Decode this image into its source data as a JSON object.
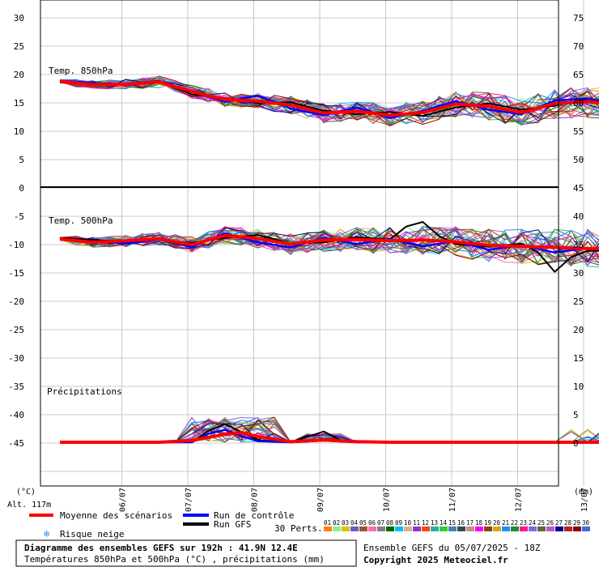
{
  "chart_data": {
    "type": "line",
    "panels": [
      {
        "label": "Temp. 850hPa",
        "y_left_ticks": [
          "30",
          "25",
          "20",
          "15",
          "10",
          "5"
        ],
        "y_right_ticks": [
          "75",
          "70",
          "65",
          "60",
          "55",
          "50"
        ],
        "ylim": [
          0,
          30
        ],
        "unit": "°C"
      },
      {
        "label": "Temp. 500hPa",
        "y_left_ticks": [
          "0",
          "-5",
          "-10",
          "-15",
          "-20",
          "-25",
          "-30",
          "-35",
          "-40",
          "-45"
        ],
        "y_right_ticks": [
          "45",
          "40",
          "35",
          "30",
          "25",
          "20",
          "15",
          "10",
          "5",
          "0"
        ],
        "ylim": [
          -50,
          0
        ],
        "unit": "°C"
      },
      {
        "label": "Précipitations",
        "unit": "mm"
      }
    ],
    "x_ticks": [
      "06/07",
      "07/07",
      "08/07",
      "09/07",
      "10/07",
      "11/07",
      "12/07",
      "13/07"
    ],
    "left_unit": "(°C)",
    "right_unit": "(mm)",
    "altitude": "Alt. 117m",
    "series": [
      {
        "name": "Moyenne des scénarios",
        "color": "#ff0000",
        "t850": [
          [
            0,
            18.8
          ],
          [
            0.5,
            18.2
          ],
          [
            1,
            18.3
          ],
          [
            1.5,
            18.7
          ],
          [
            2,
            17.0
          ],
          [
            2.5,
            15.6
          ],
          [
            3,
            15.3
          ],
          [
            3.5,
            14.6
          ],
          [
            4,
            13.2
          ],
          [
            4.5,
            13.5
          ],
          [
            5,
            12.8
          ],
          [
            5.5,
            13.3
          ],
          [
            6,
            14.8
          ],
          [
            6.5,
            14.4
          ],
          [
            7,
            13.3
          ],
          [
            7.5,
            14.9
          ],
          [
            8,
            15.2
          ],
          [
            8.5,
            14.6
          ],
          [
            9,
            15.8
          ],
          [
            9.5,
            15.9
          ],
          [
            10,
            15.8
          ],
          [
            10.5,
            16.8
          ],
          [
            11,
            17.0
          ],
          [
            11.5,
            16.9
          ],
          [
            12,
            18.2
          ]
        ],
        "t500": [
          [
            0,
            -9.0
          ],
          [
            0.5,
            -9.6
          ],
          [
            1,
            -9.3
          ],
          [
            1.5,
            -9.0
          ],
          [
            2,
            -10.0
          ],
          [
            2.5,
            -8.4
          ],
          [
            3,
            -8.9
          ],
          [
            3.5,
            -9.9
          ],
          [
            4,
            -9.2
          ],
          [
            4.5,
            -9.1
          ],
          [
            5,
            -9.3
          ],
          [
            5.5,
            -9.2
          ],
          [
            6,
            -9.5
          ],
          [
            6.5,
            -10.1
          ],
          [
            7,
            -10.3
          ],
          [
            7.5,
            -10.5
          ],
          [
            8,
            -10.7
          ],
          [
            8.5,
            -10.8
          ],
          [
            9,
            -10.6
          ],
          [
            9.5,
            -10.4
          ],
          [
            10,
            -10.3
          ],
          [
            10.5,
            -9.9
          ],
          [
            11,
            -9.8
          ],
          [
            11.5,
            -10.0
          ],
          [
            12,
            -10.3
          ]
        ],
        "precip": [
          [
            0,
            0
          ],
          [
            1,
            0
          ],
          [
            1.5,
            0
          ],
          [
            2,
            0.3
          ],
          [
            2.5,
            1.4
          ],
          [
            2.75,
            1.7
          ],
          [
            3,
            1.0
          ],
          [
            3.5,
            0.1
          ],
          [
            4,
            0.4
          ],
          [
            4.5,
            0.1
          ],
          [
            5,
            0
          ],
          [
            6,
            0
          ],
          [
            7,
            0
          ],
          [
            8,
            0
          ],
          [
            9,
            0
          ],
          [
            10,
            0
          ],
          [
            11,
            0
          ],
          [
            12,
            0
          ]
        ]
      },
      {
        "name": "Run de contrôle",
        "color": "#0000ff",
        "t850": [
          [
            0,
            18.9
          ],
          [
            1,
            18.1
          ],
          [
            1.5,
            18.6
          ],
          [
            2,
            17.1
          ],
          [
            2.5,
            15.2
          ],
          [
            3,
            16.3
          ],
          [
            3.5,
            14.0
          ],
          [
            4,
            12.8
          ],
          [
            4.5,
            14.2
          ],
          [
            5,
            12.3
          ],
          [
            5.5,
            13.6
          ],
          [
            6,
            15.3
          ],
          [
            6.5,
            13.8
          ],
          [
            7,
            13.0
          ],
          [
            7.5,
            15.4
          ],
          [
            8,
            15.8
          ],
          [
            8.5,
            14.1
          ],
          [
            9,
            16.4
          ],
          [
            9.5,
            16.1
          ],
          [
            10,
            15.2
          ],
          [
            10.5,
            17.3
          ],
          [
            11,
            16.2
          ],
          [
            11.5,
            17.5
          ],
          [
            12,
            17.6
          ]
        ],
        "t500": [
          [
            0,
            -9.0
          ],
          [
            1,
            -9.8
          ],
          [
            1.5,
            -9.1
          ],
          [
            2,
            -10.4
          ],
          [
            2.5,
            -8.0
          ],
          [
            3,
            -9.6
          ],
          [
            3.5,
            -10.5
          ],
          [
            4,
            -8.8
          ],
          [
            4.5,
            -9.9
          ],
          [
            5,
            -9.0
          ],
          [
            5.5,
            -10.3
          ],
          [
            6,
            -9.4
          ],
          [
            6.5,
            -10.9
          ],
          [
            7,
            -10.1
          ],
          [
            7.5,
            -11.4
          ],
          [
            8,
            -10.6
          ],
          [
            8.5,
            -11.2
          ],
          [
            9,
            -10.2
          ],
          [
            9.5,
            -11.7
          ],
          [
            10,
            -11.3
          ],
          [
            10.5,
            -13.2
          ],
          [
            11,
            -11.5
          ],
          [
            11.5,
            -12.6
          ],
          [
            12,
            -10.4
          ]
        ],
        "precip": [
          [
            0,
            0
          ],
          [
            2,
            0
          ],
          [
            2.25,
            1.5
          ],
          [
            2.5,
            2.2
          ],
          [
            2.75,
            1.1
          ],
          [
            3,
            0.2
          ],
          [
            3.5,
            0
          ],
          [
            4,
            0.3
          ],
          [
            4.5,
            0
          ],
          [
            12,
            0
          ]
        ]
      },
      {
        "name": "Run GFS",
        "color": "#000000",
        "t850": [
          [
            0,
            18.6
          ],
          [
            1,
            18.4
          ],
          [
            1.5,
            18.9
          ],
          [
            2,
            16.5
          ],
          [
            2.5,
            15.8
          ],
          [
            3,
            14.9
          ],
          [
            3.5,
            15.1
          ],
          [
            4,
            13.6
          ],
          [
            4.5,
            13.0
          ],
          [
            5,
            13.4
          ],
          [
            5.5,
            12.7
          ],
          [
            6,
            14.2
          ],
          [
            6.5,
            14.9
          ],
          [
            7,
            13.8
          ],
          [
            7.5,
            14.5
          ],
          [
            8,
            15.7
          ],
          [
            8.5,
            14.9
          ],
          [
            9,
            15.2
          ],
          [
            9.5,
            16.4
          ],
          [
            10,
            16.6
          ],
          [
            10.5,
            16.0
          ],
          [
            11,
            16.9
          ],
          [
            11.5,
            14.7
          ],
          [
            12,
            17.3
          ]
        ],
        "t500": [
          [
            0,
            -8.8
          ],
          [
            1,
            -9.5
          ],
          [
            1.5,
            -9.2
          ],
          [
            2,
            -9.7
          ],
          [
            2.5,
            -8.8
          ],
          [
            3,
            -8.3
          ],
          [
            3.5,
            -9.8
          ],
          [
            4,
            -9.6
          ],
          [
            4.5,
            -8.7
          ],
          [
            5,
            -9.1
          ],
          [
            5.25,
            -6.8
          ],
          [
            5.5,
            -6.0
          ],
          [
            5.75,
            -8.5
          ],
          [
            6,
            -9.9
          ],
          [
            6.5,
            -10.4
          ],
          [
            7,
            -9.8
          ],
          [
            7.25,
            -11.4
          ],
          [
            7.5,
            -14.8
          ],
          [
            7.75,
            -12.2
          ],
          [
            8,
            -11.1
          ],
          [
            9,
            -10.9
          ],
          [
            10,
            -10.4
          ],
          [
            10.5,
            -10.1
          ],
          [
            11,
            -10.8
          ],
          [
            11.5,
            -12.0
          ],
          [
            12,
            -10.9
          ]
        ],
        "precip": [
          [
            0,
            0
          ],
          [
            2,
            0
          ],
          [
            2.25,
            2.0
          ],
          [
            2.5,
            3.2
          ],
          [
            2.75,
            1.8
          ],
          [
            3,
            0.4
          ],
          [
            3.5,
            0
          ],
          [
            4,
            1.9
          ],
          [
            4.25,
            0.4
          ],
          [
            4.5,
            0
          ],
          [
            10,
            0
          ],
          [
            11,
            0
          ],
          [
            11.25,
            1.6
          ],
          [
            11.5,
            3.5
          ],
          [
            11.75,
            5.9
          ],
          [
            12,
            4.2
          ]
        ]
      }
    ],
    "perturbations": {
      "count": 30,
      "label": "30 Perts.",
      "colors": [
        "#ff7f00",
        "#90ee90",
        "#e0c000",
        "#6a5acd",
        "#a0522d",
        "#ff69b4",
        "#808080",
        "#006400",
        "#00bfff",
        "#d2b48c",
        "#9932cc",
        "#ff4500",
        "#20b2aa",
        "#32cd32",
        "#4682b4",
        "#2f4f4f",
        "#bc8f8f",
        "#ff00ff",
        "#8b4513",
        "#daa520",
        "#1e90ff",
        "#228b22",
        "#ff1493",
        "#7b68ee",
        "#556b2f",
        "#ba55d3",
        "#00008b",
        "#b22222",
        "#8b0000",
        "#4169e1"
      ],
      "numbers": [
        "01",
        "02",
        "03",
        "04",
        "05",
        "06",
        "07",
        "08",
        "09",
        "10",
        "11",
        "12",
        "13",
        "14",
        "15",
        "16",
        "17",
        "18",
        "19",
        "20",
        "21",
        "22",
        "23",
        "24",
        "25",
        "26",
        "27",
        "28",
        "29",
        "30"
      ]
    },
    "legend": {
      "mean": "Moyenne des scénarios",
      "control": "Run de contrôle",
      "gfs": "Run GFS",
      "snow": "Risque neige",
      "snow_color": "#1e90ff"
    }
  },
  "footer": {
    "title": "Diagramme des ensembles GEFS sur 192h : 41.9N 12.4E",
    "subtitle": "Températures 850hPa et 500hPa (°C) , précipitations (mm)",
    "run": "Ensemble GEFS du 05/07/2025 - 18Z",
    "copyright": "Copyright 2025 Meteociel.fr"
  }
}
